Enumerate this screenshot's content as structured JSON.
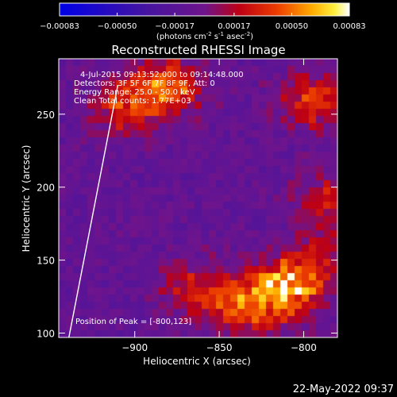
{
  "colorbar": {
    "ticks": [
      "-0.00083",
      "-0.00050",
      "-0.00017",
      "0.00017",
      "0.00050",
      "0.00083"
    ],
    "units_main": "(photons cm",
    "units_exp1": "-2",
    "units_mid": " s",
    "units_exp2": "-1",
    "units_mid2": " asec",
    "units_exp3": "-2",
    "units_end": ")"
  },
  "plot": {
    "title": "Reconstructed RHESSI Image",
    "annotations": [
      "4-Jul-2015 09:13:52.000 to 09:14:48.000",
      "Detectors: 3F 5F 6F 7F 8F 9F, Att: 0",
      "Energy Range: 25.0 - 50.0 keV",
      "Clean    Total counts: 1.77E+03"
    ],
    "peak_label": "Position of Peak = [-800,123]",
    "timestamp": "22-May-2022 09:37"
  },
  "chart_data": {
    "type": "heatmap",
    "title": "Reconstructed RHESSI Image",
    "xlabel": "Heliocentric X (arcsec)",
    "ylabel": "Heliocentric Y (arcsec)",
    "xlim": [
      -945,
      -780
    ],
    "ylim": [
      97,
      288
    ],
    "xticks": [
      -900,
      -850,
      -800
    ],
    "xtick_labels": [
      "−900",
      "−850",
      "−800"
    ],
    "yticks": [
      100,
      150,
      200,
      250
    ],
    "ytick_labels": [
      "100",
      "150",
      "200",
      "250"
    ],
    "colorbar_range": [
      -0.00083,
      0.00083
    ],
    "colorbar_unit": "photons cm^-2 s^-1 asec^-2",
    "peak_position": [
      -800,
      123
    ],
    "hotspots": [
      {
        "x": -810,
        "y": 130,
        "value": 0.00083
      },
      {
        "x": -835,
        "y": 120,
        "value": 0.0006
      },
      {
        "x": -880,
        "y": 270,
        "value": 0.0006
      },
      {
        "x": -795,
        "y": 260,
        "value": 0.0005
      },
      {
        "x": -905,
        "y": 255,
        "value": 0.0005
      },
      {
        "x": -785,
        "y": 190,
        "value": 0.0004
      },
      {
        "x": -865,
        "y": 130,
        "value": 0.0004
      },
      {
        "x": -790,
        "y": 150,
        "value": 0.0003
      }
    ],
    "limb_line": [
      [
        -939,
        97
      ],
      [
        -910,
        270
      ]
    ],
    "colors": {
      "background": "#000000",
      "text": "#ffffff",
      "colormap": "blue-purple-red-yellow-white"
    }
  }
}
